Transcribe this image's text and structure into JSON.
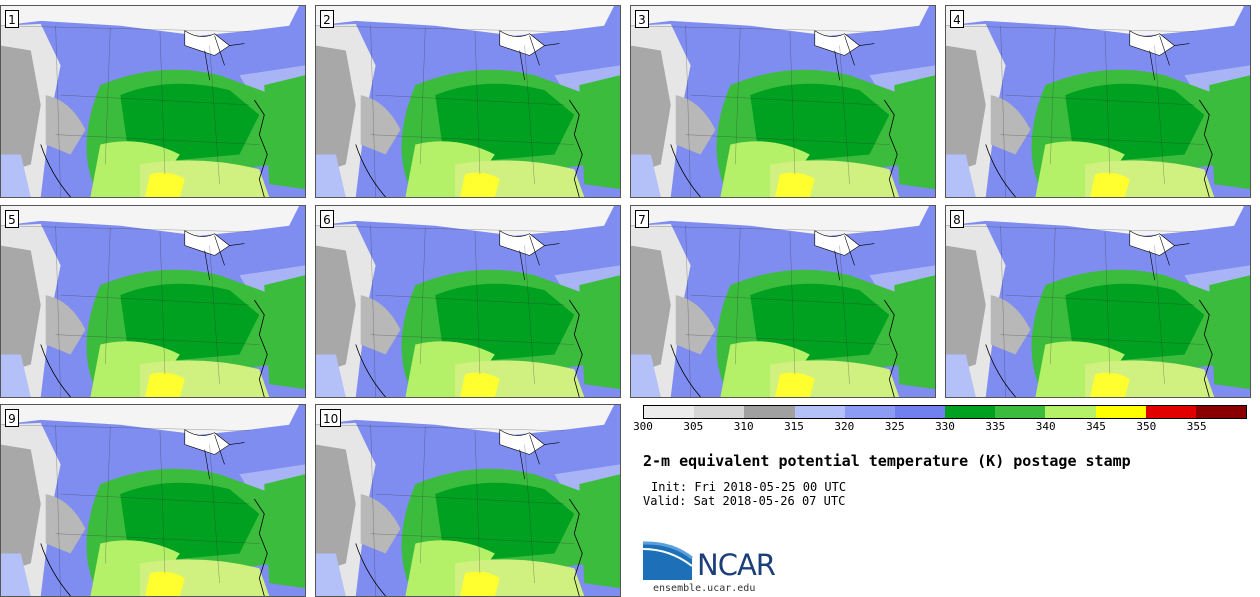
{
  "panels": [
    {
      "label": "1"
    },
    {
      "label": "2"
    },
    {
      "label": "3"
    },
    {
      "label": "4"
    },
    {
      "label": "5"
    },
    {
      "label": "6"
    },
    {
      "label": "7"
    },
    {
      "label": "8"
    },
    {
      "label": "9"
    },
    {
      "label": "10"
    }
  ],
  "colorbar": {
    "ticks": [
      "300",
      "305",
      "310",
      "315",
      "320",
      "325",
      "330",
      "335",
      "340",
      "345",
      "350",
      "355"
    ],
    "colors": [
      "#ececec",
      "#d6d6d6",
      "#a0a0a0",
      "#b4c0f8",
      "#8c9cf4",
      "#7080ee",
      "#00a020",
      "#3cbc3c",
      "#b4f068",
      "#ffff00",
      "#e00000",
      "#8a0000"
    ]
  },
  "title": "2-m equivalent potential temperature (K) postage stamp",
  "init": "Init: Fri 2018-05-25 00 UTC",
  "valid": "Valid: Sat 2018-05-26 07 UTC",
  "logo": {
    "text": "NCAR",
    "url": "ensemble.ucar.edu"
  }
}
